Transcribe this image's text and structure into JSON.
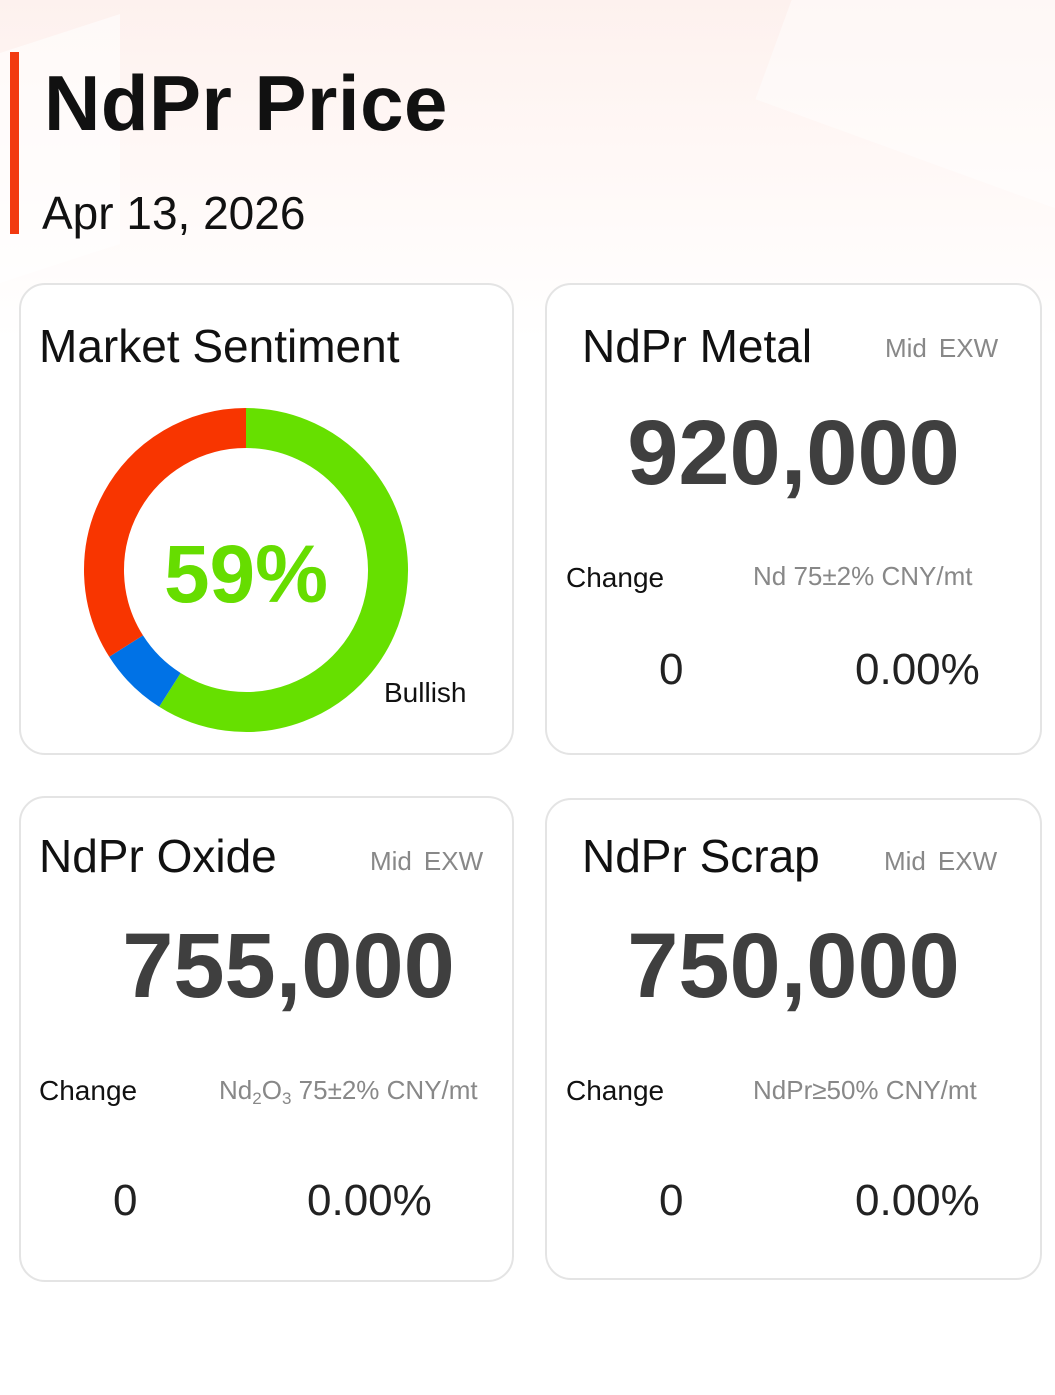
{
  "header": {
    "title": "NdPr Price",
    "date": "Apr 13, 2026",
    "accent_color": "#f23a10"
  },
  "sentiment": {
    "title": "Market Sentiment",
    "percent_label": "59%",
    "label": "Bullish",
    "segments": [
      {
        "name": "bullish",
        "fraction": 0.59,
        "color": "#66e000"
      },
      {
        "name": "neutral",
        "fraction": 0.07,
        "color": "#0072e6"
      },
      {
        "name": "bearish",
        "fraction": 0.34,
        "color": "#f83500"
      }
    ]
  },
  "metal": {
    "title": "NdPr Metal",
    "tag_mid": "Mid",
    "tag_exw": "EXW",
    "price": "920,000",
    "change_label": "Change",
    "spec": "Nd 75±2% CNY/mt",
    "change_value": "0",
    "change_percent": "0.00%"
  },
  "oxide": {
    "title": "NdPr Oxide",
    "tag_mid": "Mid",
    "tag_exw": "EXW",
    "price": "755,000",
    "change_label": "Change",
    "spec_nd": "Nd",
    "spec_sub2": "2",
    "spec_o": "O",
    "spec_sub3": "3",
    "spec_rest": " 75±2% CNY/mt",
    "change_value": "0",
    "change_percent": "0.00%"
  },
  "scrap": {
    "title": "NdPr Scrap",
    "tag_mid": "Mid",
    "tag_exw": "EXW",
    "price": "750,000",
    "change_label": "Change",
    "spec": "NdPr≥50% CNY/mt",
    "change_value": "0",
    "change_percent": "0.00%"
  }
}
